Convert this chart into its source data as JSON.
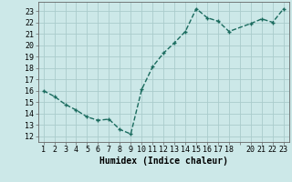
{
  "x": [
    1,
    2,
    3,
    4,
    5,
    6,
    7,
    8,
    9,
    10,
    11,
    12,
    13,
    14,
    15,
    16,
    17,
    18,
    20,
    21,
    22,
    23
  ],
  "y": [
    16.0,
    15.5,
    14.8,
    14.3,
    13.7,
    13.4,
    13.5,
    12.6,
    12.2,
    16.1,
    18.1,
    19.3,
    20.2,
    21.2,
    23.2,
    22.4,
    22.1,
    21.2,
    21.9,
    22.3,
    22.0,
    23.2
  ],
  "line_color": "#1a6b5e",
  "marker_color": "#1a6b5e",
  "bg_color": "#cce8e8",
  "grid_color": "#aacccc",
  "xlabel": "Humidex (Indice chaleur)",
  "ylabel_ticks": [
    12,
    13,
    14,
    15,
    16,
    17,
    18,
    19,
    20,
    21,
    22,
    23
  ],
  "xtick_labels": [
    "1",
    "2",
    "3",
    "4",
    "5",
    "6",
    "7",
    "8",
    "9",
    "10",
    "11",
    "12",
    "13",
    "14",
    "15",
    "16",
    "17",
    "18",
    "",
    "20",
    "21",
    "22",
    "23"
  ],
  "xticks": [
    1,
    2,
    3,
    4,
    5,
    6,
    7,
    8,
    9,
    10,
    11,
    12,
    13,
    14,
    15,
    16,
    17,
    18,
    19,
    20,
    21,
    22,
    23
  ],
  "xlim": [
    0.5,
    23.5
  ],
  "ylim": [
    11.5,
    23.8
  ],
  "xlabel_fontsize": 7,
  "tick_fontsize": 6,
  "line_width": 1.0,
  "marker_size": 2.5
}
